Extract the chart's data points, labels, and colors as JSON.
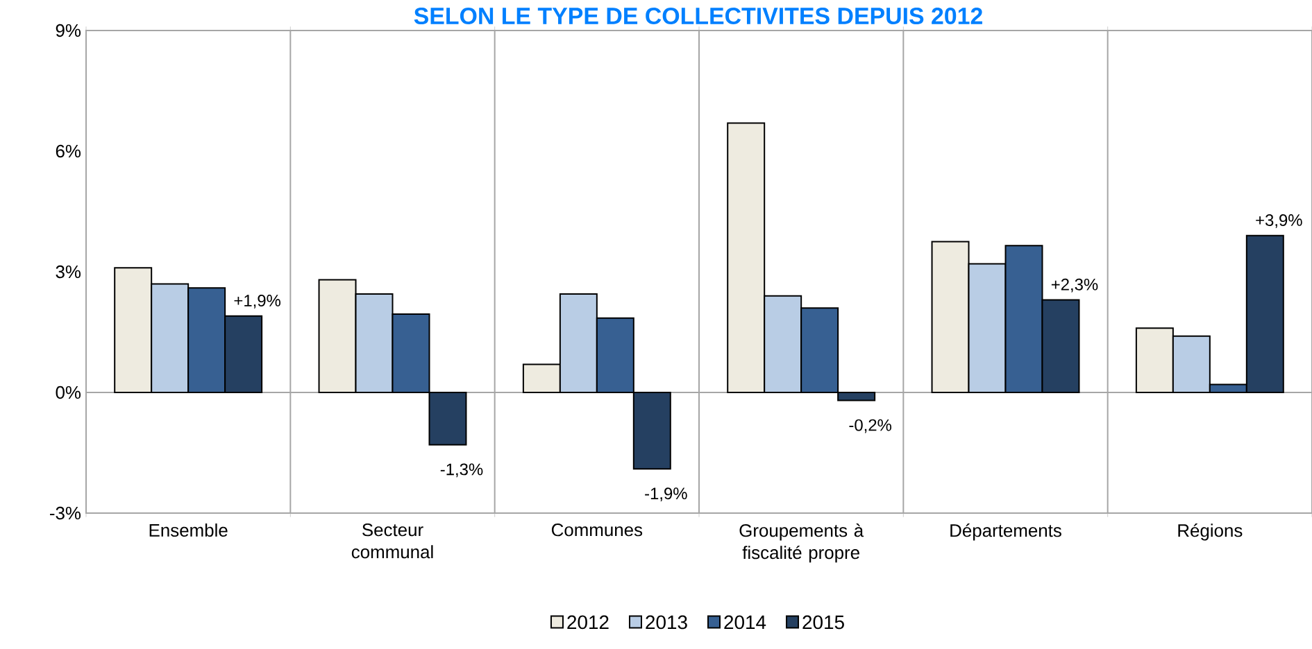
{
  "chart_data": {
    "type": "bar",
    "title": "SELON LE TYPE DE COLLECTIVITES DEPUIS 2012",
    "categories": [
      "Ensemble",
      "Secteur communal",
      "Communes",
      "Groupements à fiscalité propre",
      "Départements",
      "Régions"
    ],
    "series": [
      {
        "name": "2012",
        "color": "#eeebe0",
        "values": [
          3.1,
          2.8,
          0.7,
          6.7,
          3.75,
          1.6
        ]
      },
      {
        "name": "2013",
        "color": "#b9cde5",
        "values": [
          2.7,
          2.45,
          2.45,
          2.4,
          3.2,
          1.4
        ]
      },
      {
        "name": "2014",
        "color": "#376092",
        "values": [
          2.6,
          1.95,
          1.85,
          2.1,
          3.65,
          0.2
        ]
      },
      {
        "name": "2015",
        "color": "#254061",
        "values": [
          1.9,
          -1.3,
          -1.9,
          -0.2,
          2.3,
          3.9
        ],
        "value_labels": [
          "+1,9%",
          "-1,3%",
          "-1,9%",
          "-0,2%",
          "+2,3%",
          "+3,9%"
        ]
      }
    ],
    "ylim": [
      -3,
      9
    ],
    "yticks": [
      {
        "value": -3,
        "label": "-3%"
      },
      {
        "value": 0,
        "label": "0%"
      },
      {
        "value": 3,
        "label": "3%"
      },
      {
        "value": 6,
        "label": "6%"
      },
      {
        "value": 9,
        "label": "9%"
      }
    ],
    "ref_lines": [
      {
        "axis": "y",
        "value": 0,
        "color": "#a6a6a6"
      }
    ],
    "grid": "x",
    "legend": "bottom"
  }
}
